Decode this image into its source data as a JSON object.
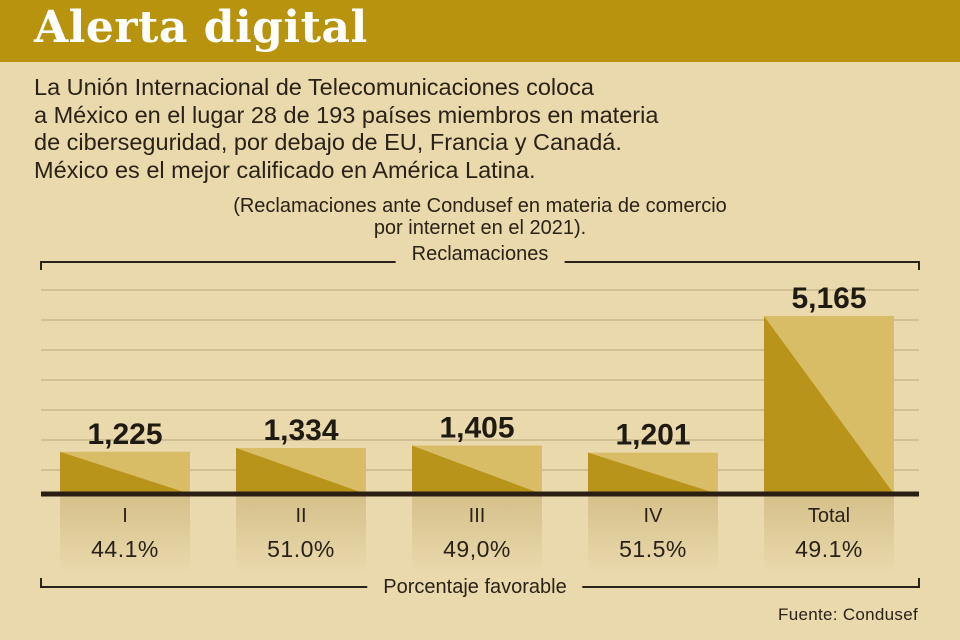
{
  "header": {
    "title": "Alerta digital"
  },
  "intro": {
    "lines": [
      "La Unión Internacional de Telecomunicaciones coloca",
      "a México en el lugar 28 de 193 países miembros en materia",
      "de ciberseguridad, por debajo de EU, Francia y Canadá.",
      "México es el mejor calificado en América Latina."
    ]
  },
  "subtitle": {
    "lines": [
      "(Reclamaciones ante Condusef en materia de comercio",
      "por internet en el 2021)."
    ]
  },
  "chart_labels": {
    "top_bracket": "Reclamaciones",
    "bottom_bracket": "Porcentaje favorable"
  },
  "source": "Fuente: Condusef",
  "colors": {
    "title_bar": "#b7930e",
    "background": "#ead9ad",
    "bar_dark": "#b8941a",
    "bar_light": "#d9bd66",
    "baseline": "#2a1f12"
  },
  "chart_data": {
    "type": "bar",
    "categories": [
      "I",
      "II",
      "III",
      "IV",
      "Total"
    ],
    "series": [
      {
        "name": "Reclamaciones",
        "values": [
          1225,
          1334,
          1405,
          1201,
          5165
        ],
        "labels": [
          "1,225",
          "1,334",
          "1,405",
          "1,201",
          "5,165"
        ]
      },
      {
        "name": "Porcentaje favorable",
        "values": [
          44.1,
          51.0,
          49.0,
          51.5,
          49.1
        ],
        "labels": [
          "44.1%",
          "51.0%",
          "49,0%",
          "51.5%",
          "49.1%"
        ]
      }
    ],
    "grid": true
  }
}
